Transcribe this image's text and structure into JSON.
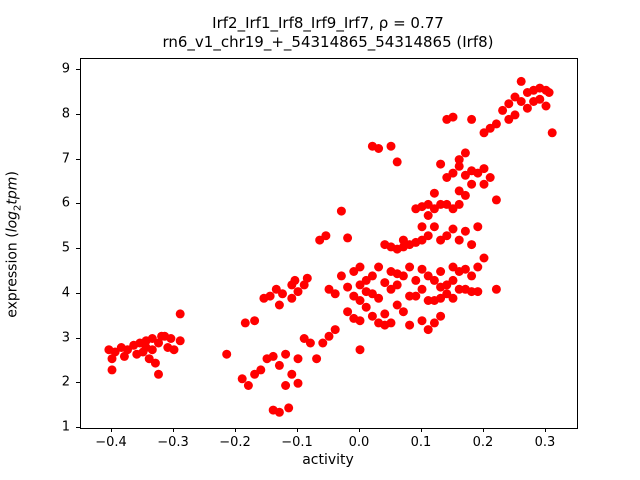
{
  "figure": {
    "title_line1": "Irf2_Irf1_Irf8_Irf9_Irf7, ρ = 0.77",
    "title_line2": "rn6_v1_chr19_+_54314865_54314865 (Irf8)",
    "xlabel": "activity",
    "ylabel_prefix": "expression (",
    "ylabel_math1": "log",
    "ylabel_sub": "2",
    "ylabel_math2": "tpm",
    "ylabel_suffix": ")"
  },
  "chart_data": {
    "type": "scatter",
    "title": "Irf2_Irf1_Irf8_Irf9_Irf7, ρ = 0.77",
    "subtitle": "rn6_v1_chr19_+_54314865_54314865 (Irf8)",
    "xlabel": "activity",
    "ylabel": "expression (log2 tpm)",
    "marker_color": "#ff0000",
    "marker_radius": 4.5,
    "grid": false,
    "legend": "none",
    "xlim": [
      -0.45,
      0.35
    ],
    "ylim": [
      1.0,
      9.25
    ],
    "xticks": [
      -0.4,
      -0.3,
      -0.2,
      -0.1,
      0.0,
      0.1,
      0.2,
      0.3
    ],
    "xtick_labels": [
      "−0.4",
      "−0.3",
      "−0.2",
      "−0.1",
      "0.0",
      "0.1",
      "0.2",
      "0.3"
    ],
    "yticks": [
      1,
      2,
      3,
      4,
      5,
      6,
      7,
      8,
      9
    ],
    "ytick_labels": [
      "1",
      "2",
      "3",
      "4",
      "5",
      "6",
      "7",
      "8",
      "9"
    ],
    "correlation_rho": 0.77,
    "points": [
      [
        -0.405,
        2.75
      ],
      [
        -0.4,
        2.55
      ],
      [
        -0.4,
        2.3
      ],
      [
        -0.395,
        2.7
      ],
      [
        -0.385,
        2.8
      ],
      [
        -0.38,
        2.6
      ],
      [
        -0.375,
        2.75
      ],
      [
        -0.365,
        2.85
      ],
      [
        -0.36,
        2.65
      ],
      [
        -0.355,
        2.9
      ],
      [
        -0.35,
        2.7
      ],
      [
        -0.345,
        2.8
      ],
      [
        -0.34,
        2.55
      ],
      [
        -0.335,
        3.0
      ],
      [
        -0.335,
        2.75
      ],
      [
        -0.33,
        2.45
      ],
      [
        -0.325,
        2.9
      ],
      [
        -0.325,
        2.2
      ],
      [
        -0.315,
        3.05
      ],
      [
        -0.31,
        2.8
      ],
      [
        -0.305,
        3.0
      ],
      [
        -0.3,
        2.75
      ],
      [
        -0.29,
        3.55
      ],
      [
        -0.29,
        2.95
      ],
      [
        -0.32,
        3.05
      ],
      [
        -0.345,
        2.95
      ],
      [
        -0.215,
        2.65
      ],
      [
        -0.19,
        2.1
      ],
      [
        -0.185,
        3.35
      ],
      [
        -0.18,
        1.95
      ],
      [
        -0.17,
        3.4
      ],
      [
        -0.17,
        2.2
      ],
      [
        -0.16,
        2.3
      ],
      [
        -0.155,
        3.9
      ],
      [
        -0.15,
        2.55
      ],
      [
        -0.145,
        3.95
      ],
      [
        -0.14,
        2.6
      ],
      [
        -0.14,
        1.4
      ],
      [
        -0.135,
        4.1
      ],
      [
        -0.13,
        3.75
      ],
      [
        -0.13,
        2.4
      ],
      [
        -0.13,
        1.35
      ],
      [
        -0.125,
        4.0
      ],
      [
        -0.12,
        2.65
      ],
      [
        -0.12,
        1.95
      ],
      [
        -0.115,
        1.45
      ],
      [
        -0.11,
        4.2
      ],
      [
        -0.11,
        3.9
      ],
      [
        -0.11,
        2.2
      ],
      [
        -0.105,
        4.3
      ],
      [
        -0.1,
        4.05
      ],
      [
        -0.1,
        2.55
      ],
      [
        -0.1,
        2.0
      ],
      [
        -0.09,
        4.2
      ],
      [
        -0.09,
        3.0
      ],
      [
        -0.085,
        4.35
      ],
      [
        -0.08,
        2.9
      ],
      [
        -0.07,
        2.55
      ],
      [
        -0.065,
        5.2
      ],
      [
        -0.055,
        5.3
      ],
      [
        -0.05,
        4.1
      ],
      [
        -0.05,
        3.05
      ],
      [
        -0.06,
        2.9
      ],
      [
        -0.04,
        4.0
      ],
      [
        -0.04,
        3.2
      ],
      [
        -0.03,
        5.85
      ],
      [
        -0.03,
        4.4
      ],
      [
        -0.02,
        5.25
      ],
      [
        -0.02,
        4.15
      ],
      [
        -0.02,
        3.6
      ],
      [
        -0.01,
        4.5
      ],
      [
        -0.01,
        3.95
      ],
      [
        -0.01,
        3.45
      ],
      [
        0.0,
        4.6
      ],
      [
        0.0,
        4.2
      ],
      [
        0.0,
        3.85
      ],
      [
        0.0,
        3.4
      ],
      [
        0.0,
        2.75
      ],
      [
        0.01,
        4.3
      ],
      [
        0.01,
        4.05
      ],
      [
        0.01,
        3.7
      ],
      [
        0.02,
        7.3
      ],
      [
        0.02,
        4.4
      ],
      [
        0.02,
        4.0
      ],
      [
        0.02,
        3.5
      ],
      [
        0.03,
        7.25
      ],
      [
        0.03,
        4.6
      ],
      [
        0.03,
        3.9
      ],
      [
        0.03,
        3.35
      ],
      [
        0.04,
        5.1
      ],
      [
        0.04,
        4.25
      ],
      [
        0.04,
        3.55
      ],
      [
        0.04,
        3.3
      ],
      [
        0.05,
        7.3
      ],
      [
        0.05,
        5.05
      ],
      [
        0.05,
        4.5
      ],
      [
        0.05,
        4.1
      ],
      [
        0.05,
        3.35
      ],
      [
        0.06,
        6.95
      ],
      [
        0.06,
        5.0
      ],
      [
        0.06,
        4.45
      ],
      [
        0.06,
        4.2
      ],
      [
        0.06,
        3.75
      ],
      [
        0.07,
        5.2
      ],
      [
        0.07,
        5.05
      ],
      [
        0.07,
        4.4
      ],
      [
        0.07,
        3.6
      ],
      [
        0.08,
        5.1
      ],
      [
        0.08,
        4.6
      ],
      [
        0.08,
        3.95
      ],
      [
        0.08,
        3.3
      ],
      [
        0.09,
        5.9
      ],
      [
        0.09,
        5.15
      ],
      [
        0.09,
        4.3
      ],
      [
        0.09,
        3.95
      ],
      [
        0.1,
        5.95
      ],
      [
        0.1,
        5.5
      ],
      [
        0.1,
        5.2
      ],
      [
        0.1,
        4.55
      ],
      [
        0.1,
        4.1
      ],
      [
        0.1,
        3.4
      ],
      [
        0.11,
        6.0
      ],
      [
        0.11,
        5.75
      ],
      [
        0.11,
        5.3
      ],
      [
        0.11,
        4.4
      ],
      [
        0.11,
        3.85
      ],
      [
        0.11,
        3.2
      ],
      [
        0.12,
        6.25
      ],
      [
        0.12,
        5.9
      ],
      [
        0.12,
        5.5
      ],
      [
        0.12,
        4.3
      ],
      [
        0.12,
        3.85
      ],
      [
        0.12,
        3.35
      ],
      [
        0.13,
        6.9
      ],
      [
        0.13,
        6.0
      ],
      [
        0.13,
        5.2
      ],
      [
        0.13,
        4.5
      ],
      [
        0.13,
        4.15
      ],
      [
        0.13,
        3.9
      ],
      [
        0.13,
        3.5
      ],
      [
        0.14,
        7.9
      ],
      [
        0.14,
        6.6
      ],
      [
        0.14,
        6.0
      ],
      [
        0.14,
        5.3
      ],
      [
        0.14,
        4.2
      ],
      [
        0.14,
        4.0
      ],
      [
        0.15,
        7.95
      ],
      [
        0.15,
        6.7
      ],
      [
        0.15,
        5.9
      ],
      [
        0.15,
        5.45
      ],
      [
        0.15,
        4.6
      ],
      [
        0.15,
        4.3
      ],
      [
        0.15,
        3.9
      ],
      [
        0.16,
        7.0
      ],
      [
        0.16,
        6.85
      ],
      [
        0.16,
        6.3
      ],
      [
        0.16,
        6.0
      ],
      [
        0.16,
        5.2
      ],
      [
        0.16,
        4.5
      ],
      [
        0.16,
        4.1
      ],
      [
        0.17,
        7.15
      ],
      [
        0.17,
        6.65
      ],
      [
        0.17,
        6.2
      ],
      [
        0.17,
        5.4
      ],
      [
        0.17,
        4.55
      ],
      [
        0.17,
        4.1
      ],
      [
        0.18,
        7.9
      ],
      [
        0.18,
        6.75
      ],
      [
        0.18,
        6.45
      ],
      [
        0.18,
        5.1
      ],
      [
        0.18,
        4.4
      ],
      [
        0.18,
        4.05
      ],
      [
        0.19,
        6.7
      ],
      [
        0.19,
        5.5
      ],
      [
        0.19,
        4.6
      ],
      [
        0.19,
        4.05
      ],
      [
        0.2,
        7.6
      ],
      [
        0.2,
        6.8
      ],
      [
        0.2,
        6.45
      ],
      [
        0.2,
        4.8
      ],
      [
        0.21,
        7.7
      ],
      [
        0.21,
        6.6
      ],
      [
        0.22,
        7.8
      ],
      [
        0.22,
        6.1
      ],
      [
        0.22,
        4.1
      ],
      [
        0.23,
        8.1
      ],
      [
        0.24,
        8.25
      ],
      [
        0.24,
        7.9
      ],
      [
        0.25,
        8.4
      ],
      [
        0.25,
        8.0
      ],
      [
        0.26,
        8.75
      ],
      [
        0.26,
        8.3
      ],
      [
        0.27,
        8.5
      ],
      [
        0.27,
        8.15
      ],
      [
        0.28,
        8.55
      ],
      [
        0.28,
        8.3
      ],
      [
        0.29,
        8.6
      ],
      [
        0.29,
        8.35
      ],
      [
        0.3,
        8.55
      ],
      [
        0.3,
        8.2
      ],
      [
        0.31,
        7.6
      ],
      [
        0.305,
        8.5
      ]
    ]
  }
}
